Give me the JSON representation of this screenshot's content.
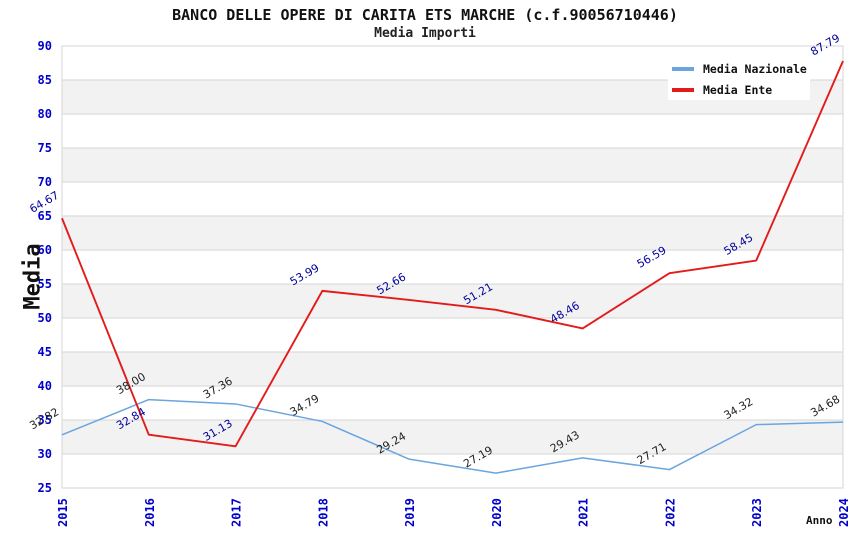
{
  "title": "BANCO DELLE OPERE DI CARITA ETS MARCHE (c.f.90056710446)",
  "subtitle": "Media Importi",
  "legend": {
    "items": [
      {
        "label": "Media Nazionale"
      },
      {
        "label": "Media Ente"
      }
    ]
  },
  "chart_data": {
    "type": "line",
    "x": [
      "2015",
      "2016",
      "2017",
      "2018",
      "2019",
      "2020",
      "2021",
      "2022",
      "2023",
      "2024"
    ],
    "series": [
      {
        "name": "Media Nazionale",
        "color": "#6BA5DF",
        "label_color": "#222222",
        "line_width": 1.5,
        "values": [
          32.82,
          38.0,
          37.36,
          34.79,
          29.24,
          27.19,
          29.43,
          27.71,
          34.32,
          34.68
        ]
      },
      {
        "name": "Media Ente",
        "color": "#E31B1B",
        "label_color": "#00009B",
        "line_width": 1.9,
        "values": [
          64.67,
          32.84,
          31.13,
          53.99,
          52.66,
          51.21,
          48.46,
          56.59,
          58.45,
          87.79
        ]
      }
    ],
    "xlabel": "Anno",
    "ylabel": "Media",
    "ylim": [
      25,
      90
    ],
    "ytick_step": 5,
    "grid": true,
    "legend_position": "top-right",
    "tick_color": "#0000CC",
    "grid_color": "#D6D6D6",
    "band_colors": [
      "#FFFFFF",
      "#F2F2F2"
    ]
  }
}
